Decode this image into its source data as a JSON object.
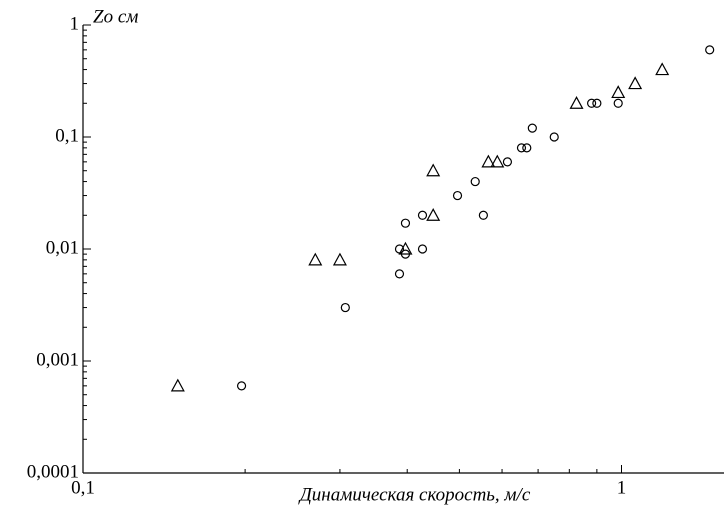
{
  "chart_data": {
    "type": "scatter",
    "x_label": "Динамическая скорость, м/с",
    "y_label": "Zo см",
    "xscale": "log",
    "yscale": "log",
    "xlim": [
      0.1,
      1.55
    ],
    "ylim": [
      0.0001,
      1
    ],
    "xticks": [
      {
        "value": 0.1,
        "label": "0,1"
      },
      1
    ],
    "yticks": [
      {
        "value": 0.0001,
        "label": "0,0001"
      },
      {
        "value": 0.001,
        "label": "0,001"
      },
      {
        "value": 0.01,
        "label": "0,01"
      },
      {
        "value": 0.1,
        "label": "0,1"
      },
      1
    ],
    "series": [
      {
        "marker": "triangle",
        "color": "#000000",
        "x": [
          0.15,
          0.27,
          0.3,
          0.397,
          0.447,
          0.447,
          0.566,
          0.588,
          0.825,
          0.986,
          1.06,
          1.19
        ],
        "values": [
          0.0006,
          0.008,
          0.008,
          0.01,
          0.02,
          0.05,
          0.06,
          0.06,
          0.2,
          0.25,
          0.3,
          0.4
        ]
      },
      {
        "marker": "circle",
        "color": "#000000",
        "x": [
          0.197,
          0.307,
          0.387,
          0.387,
          0.397,
          0.397,
          0.427,
          0.427,
          0.496,
          0.535,
          0.554,
          0.614,
          0.652,
          0.667,
          0.683,
          0.75,
          0.88,
          0.9,
          0.986,
          1.458
        ],
        "values": [
          0.0006,
          0.003,
          0.006,
          0.01,
          0.009,
          0.017,
          0.02,
          0.01,
          0.03,
          0.04,
          0.02,
          0.06,
          0.08,
          0.08,
          0.12,
          0.1,
          0.2,
          0.2,
          0.2,
          0.6
        ]
      }
    ]
  }
}
